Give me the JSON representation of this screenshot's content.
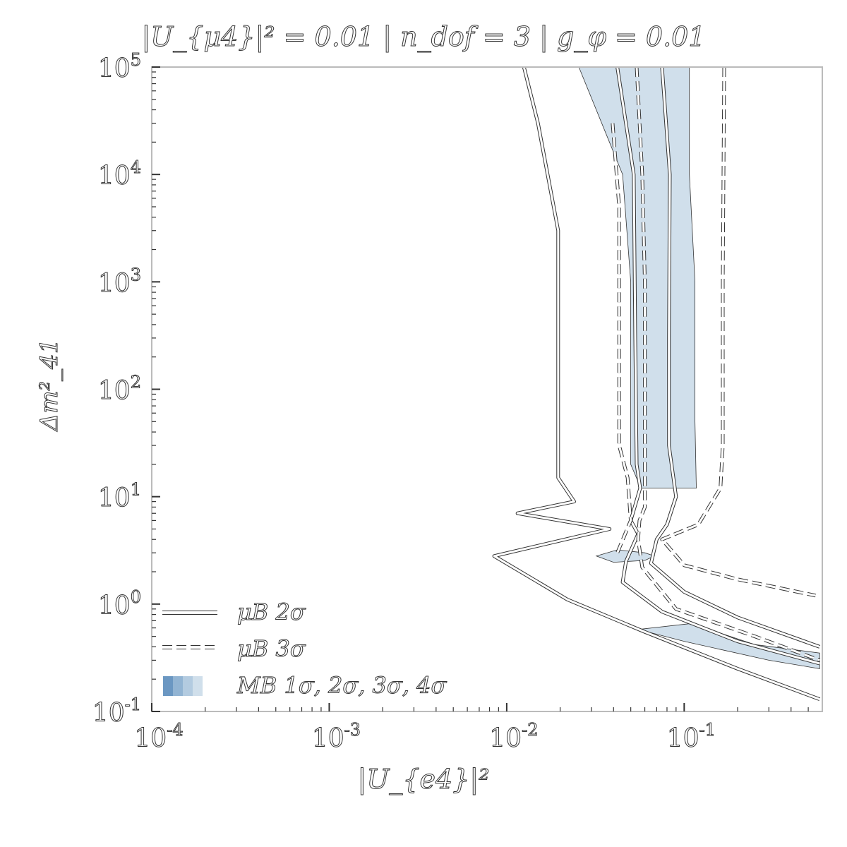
{
  "chart_data": {
    "type": "contour",
    "title": "|U_{μ4}|² = 0.01 | n_dof = 3 | g_φ = 0.01",
    "xlabel": "|U_{e4}|²",
    "ylabel": "Δm²_41",
    "xscale": "log",
    "yscale": "log",
    "xlim": [
      0.0001,
      0.6
    ],
    "ylim": [
      0.1,
      100000
    ],
    "xticks": [
      "10^-4",
      "10^-3",
      "10^-2",
      "10^-1"
    ],
    "yticks": [
      "10^-1",
      "10^0",
      "10^1",
      "10^2",
      "10^3",
      "10^4",
      "10^5"
    ],
    "legend_position": "lower-left",
    "legend": [
      {
        "label": "μB 2σ",
        "style": "solid"
      },
      {
        "label": "μB 3σ",
        "style": "dashed"
      },
      {
        "label": "MB 1σ, 2σ, 3σ, 4σ",
        "style": "filled"
      }
    ],
    "colors": {
      "mb_1sigma": "#6b97c2",
      "mb_2sigma": "#92b4d3",
      "mb_3sigma": "#b3cbe0",
      "mb_4sigma": "#d0dfeb",
      "contour_line": "#333333"
    },
    "series": [
      {
        "name": "μB 2σ",
        "style": "solid",
        "points": [
          [
            0.0125,
            100000
          ],
          [
            0.015,
            30000
          ],
          [
            0.0195,
            3000
          ],
          [
            0.0195,
            100
          ],
          [
            0.0195,
            15
          ],
          [
            0.024,
            9
          ],
          [
            0.0115,
            7
          ],
          [
            0.038,
            5
          ],
          [
            0.0085,
            2.8
          ],
          [
            0.022,
            1.1
          ],
          [
            0.06,
            0.55
          ],
          [
            0.2,
            0.25
          ],
          [
            0.58,
            0.13
          ]
        ]
      },
      {
        "name": "μB 2σ",
        "style": "solid",
        "points": [
          [
            0.042,
            100000
          ],
          [
            0.052,
            10000
          ],
          [
            0.053,
            300
          ],
          [
            0.054,
            20
          ],
          [
            0.0565,
            12
          ],
          [
            0.05,
            6
          ],
          [
            0.055,
            4.5
          ],
          [
            0.047,
            2.5
          ],
          [
            0.045,
            1.6
          ],
          [
            0.075,
            0.85
          ],
          [
            0.2,
            0.45
          ],
          [
            0.58,
            0.28
          ]
        ]
      },
      {
        "name": "μB 2σ",
        "style": "solid",
        "points": [
          [
            0.075,
            100000
          ],
          [
            0.083,
            10000
          ],
          [
            0.082,
            300
          ],
          [
            0.082,
            30
          ],
          [
            0.09,
            10
          ],
          [
            0.08,
            5.5
          ],
          [
            0.07,
            4
          ],
          [
            0.065,
            2.4
          ],
          [
            0.1,
            1.3
          ],
          [
            0.2,
            0.75
          ],
          [
            0.58,
            0.4
          ]
        ]
      },
      {
        "name": "μB 3σ",
        "style": "dashed",
        "points": [
          [
            0.0395,
            30000
          ],
          [
            0.043,
            5000
          ],
          [
            0.043,
            100
          ],
          [
            0.043,
            30
          ],
          [
            0.048,
            15
          ],
          [
            0.05,
            6
          ],
          [
            0.042,
            3
          ]
        ]
      },
      {
        "name": "μB 3σ",
        "style": "dashed",
        "points": [
          [
            0.168,
            100000
          ],
          [
            0.165,
            1000
          ],
          [
            0.165,
            30
          ],
          [
            0.16,
            12
          ],
          [
            0.12,
            5.5
          ],
          [
            0.075,
            4
          ],
          [
            0.1,
            2.3
          ],
          [
            0.2,
            1.7
          ],
          [
            0.55,
            1.2
          ]
        ]
      },
      {
        "name": "μB 3σ",
        "style": "dashed",
        "points": [
          [
            0.054,
            100000
          ],
          [
            0.058,
            10000
          ],
          [
            0.06,
            1000
          ],
          [
            0.06,
            100
          ],
          [
            0.06,
            15
          ],
          [
            0.06,
            8
          ],
          [
            0.056,
            6
          ],
          [
            0.055,
            4
          ],
          [
            0.058,
            2.2
          ],
          [
            0.09,
            0.9
          ],
          [
            0.25,
            0.5
          ],
          [
            0.58,
            0.3
          ]
        ]
      }
    ],
    "regions": [
      {
        "name": "MB 4σ",
        "points": [
          [
            0.0255,
            100000
          ],
          [
            0.045,
            10000
          ],
          [
            0.05,
            1000
          ],
          [
            0.05,
            20
          ],
          [
            0.057,
            12
          ],
          [
            0.117,
            12
          ],
          [
            0.115,
            50
          ],
          [
            0.115,
            1000
          ],
          [
            0.107,
            10000
          ],
          [
            0.107,
            100000
          ]
        ]
      },
      {
        "name": "MB 4σ",
        "points": [
          [
            0.032,
            2.8
          ],
          [
            0.042,
            3.2
          ],
          [
            0.06,
            3.0
          ],
          [
            0.068,
            2.8
          ],
          [
            0.06,
            2.55
          ],
          [
            0.04,
            2.45
          ]
        ]
      },
      {
        "name": "MB 4σ",
        "points": [
          [
            0.055,
            0.58
          ],
          [
            0.11,
            0.66
          ],
          [
            0.25,
            0.42
          ],
          [
            0.58,
            0.35
          ],
          [
            0.58,
            0.25
          ],
          [
            0.3,
            0.3
          ],
          [
            0.1,
            0.45
          ]
        ]
      }
    ]
  }
}
